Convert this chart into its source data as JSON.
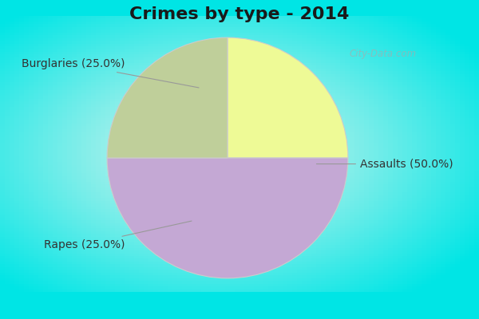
{
  "title": "Crimes by type - 2014",
  "slices": [
    {
      "label": "Burglaries (25.0%)",
      "value": 25,
      "color": "#EEFA96"
    },
    {
      "label": "Assaults (50.0%)",
      "value": 50,
      "color": "#C4A8D4"
    },
    {
      "label": "Rapes (25.0%)",
      "value": 25,
      "color": "#BFCF9A"
    }
  ],
  "startangle": 90,
  "title_fontsize": 16,
  "label_fontsize": 10,
  "bg_cyan": "#00E5E5",
  "bg_center": "#E8F5EE",
  "watermark": "City-Data.com"
}
